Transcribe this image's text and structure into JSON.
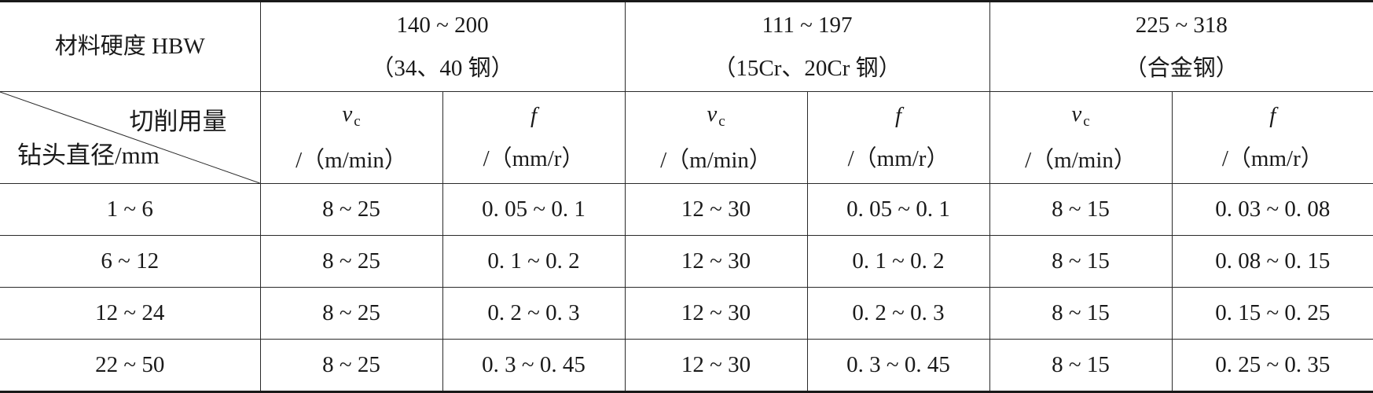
{
  "header": {
    "hardness_label": "材料硬度 HBW",
    "groups": [
      {
        "range": "140 ~ 200",
        "material": "（34、40 钢）"
      },
      {
        "range": "111 ~ 197",
        "material": "（15Cr、20Cr 钢）"
      },
      {
        "range": "225 ~ 318",
        "material": "（合金钢）"
      }
    ],
    "diag_top": "切削用量",
    "diag_bottom": "钻头直径/mm",
    "vc_symbol": "v",
    "vc_sub": "c",
    "vc_unit": "/（m/min）",
    "f_symbol": "f",
    "f_unit": "/（mm/r）"
  },
  "rows": [
    {
      "d": "1 ~ 6",
      "c": [
        "8 ~ 25",
        "0. 05 ~ 0. 1",
        "12 ~ 30",
        "0. 05 ~ 0. 1",
        "8 ~ 15",
        "0. 03 ~ 0. 08"
      ]
    },
    {
      "d": "6 ~ 12",
      "c": [
        "8 ~ 25",
        "0. 1 ~ 0. 2",
        "12 ~ 30",
        "0. 1 ~ 0. 2",
        "8 ~ 15",
        "0. 08 ~ 0. 15"
      ]
    },
    {
      "d": "12 ~ 24",
      "c": [
        "8 ~ 25",
        "0. 2 ~ 0. 3",
        "12 ~ 30",
        "0. 2 ~ 0. 3",
        "8 ~ 15",
        "0. 15 ~ 0. 25"
      ]
    },
    {
      "d": "22 ~ 50",
      "c": [
        "8 ~ 25",
        "0. 3 ~ 0. 45",
        "12 ~ 30",
        "0. 3 ~ 0. 45",
        "8 ~ 15",
        "0. 25 ~ 0. 35"
      ]
    }
  ]
}
